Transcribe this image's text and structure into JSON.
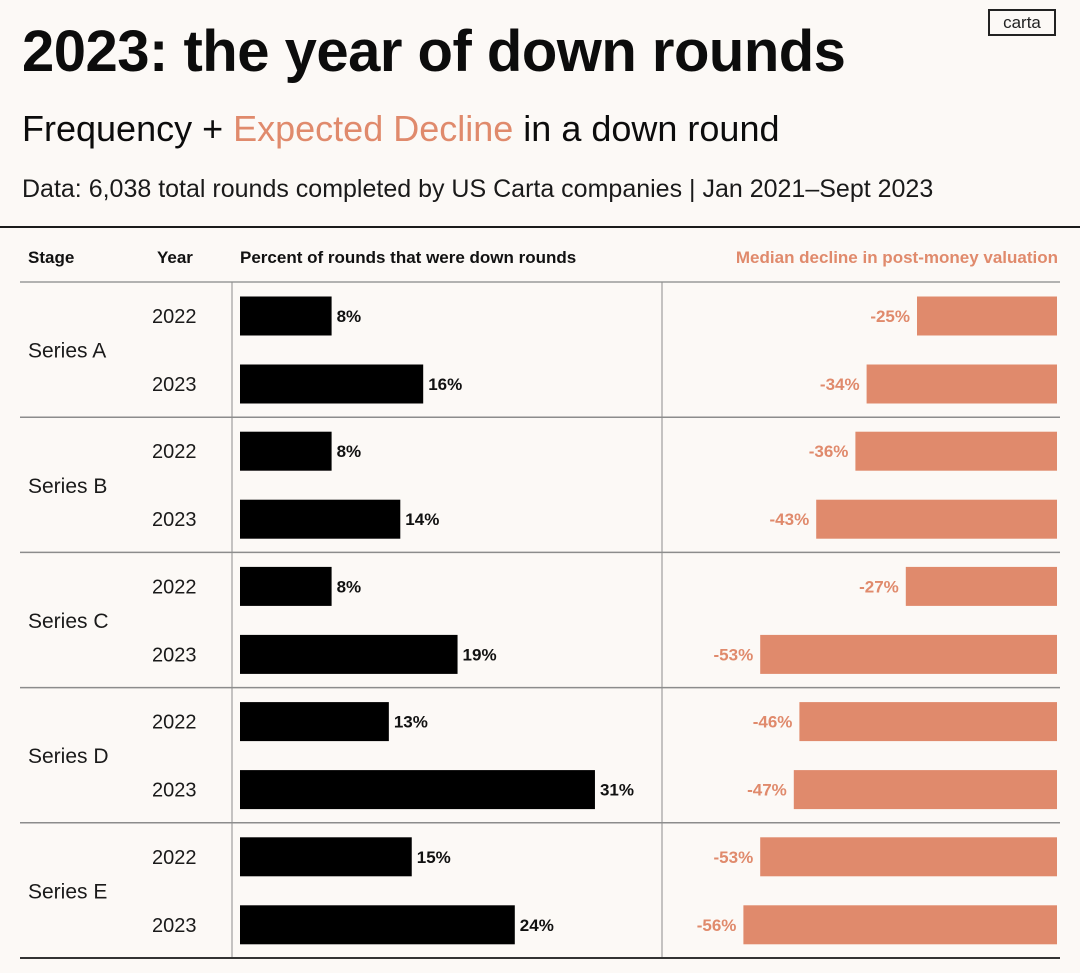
{
  "header": {
    "title": "2023: the year of down rounds",
    "subtitle_part1": "Frequency + ",
    "subtitle_accent": "Expected Decline",
    "subtitle_part2": " in a down round",
    "source": "Data: 6,038 total rounds completed by US Carta companies | Jan 2021–Sept 2023",
    "logo": "carta"
  },
  "colors": {
    "accent": "#e08a6c",
    "bar_dark": "#000000",
    "background": "#fcf9f6"
  },
  "chart_data": {
    "type": "bar",
    "title": "2023: the year of down rounds",
    "subtitle": "Frequency + Expected Decline in a down round",
    "columns": {
      "stage": "Stage",
      "year": "Year",
      "frequency": "Percent of rounds that were down rounds",
      "decline": "Median decline in post-money valuation"
    },
    "groups": [
      {
        "stage": "Series A",
        "rows": [
          {
            "year": "2022",
            "frequency": 8,
            "decline": -25
          },
          {
            "year": "2023",
            "frequency": 16,
            "decline": -34
          }
        ]
      },
      {
        "stage": "Series B",
        "rows": [
          {
            "year": "2022",
            "frequency": 8,
            "decline": -36
          },
          {
            "year": "2023",
            "frequency": 14,
            "decline": -43
          }
        ]
      },
      {
        "stage": "Series C",
        "rows": [
          {
            "year": "2022",
            "frequency": 8,
            "decline": -27
          },
          {
            "year": "2023",
            "frequency": 19,
            "decline": -53
          }
        ]
      },
      {
        "stage": "Series D",
        "rows": [
          {
            "year": "2022",
            "frequency": 13,
            "decline": -46
          },
          {
            "year": "2023",
            "frequency": 31,
            "decline": -47
          }
        ]
      },
      {
        "stage": "Series E",
        "rows": [
          {
            "year": "2022",
            "frequency": 15,
            "decline": -53
          },
          {
            "year": "2023",
            "frequency": 24,
            "decline": -56
          }
        ]
      }
    ],
    "value_suffix": "%"
  }
}
